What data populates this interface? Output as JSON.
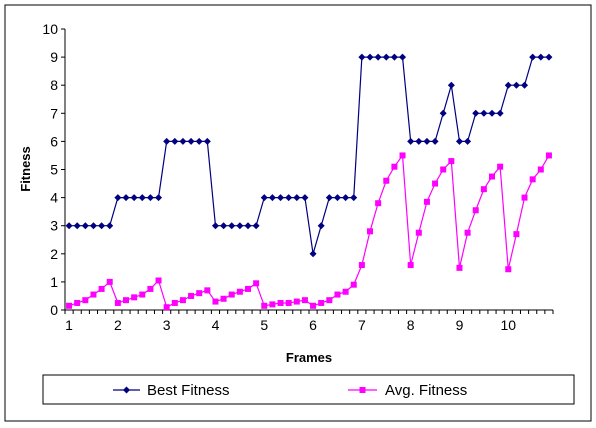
{
  "chart_data": {
    "type": "line",
    "ylabel": "Fitness",
    "xlabel": "Frames",
    "ylim": [
      0,
      10
    ],
    "yticks": [
      0,
      1,
      2,
      3,
      4,
      5,
      6,
      7,
      8,
      9,
      10
    ],
    "xtick_labels": [
      "1",
      "2",
      "3",
      "4",
      "5",
      "6",
      "7",
      "8",
      "9",
      "10"
    ],
    "grid": false,
    "legend_position": "bottom",
    "series": [
      {
        "name": "Best Fitness",
        "color": "#000080",
        "marker": "diamond",
        "values": [
          3,
          3,
          3,
          3,
          3,
          3,
          4,
          4,
          4,
          4,
          4,
          4,
          6,
          6,
          6,
          6,
          6,
          6,
          3,
          3,
          3,
          3,
          3,
          3,
          4,
          4,
          4,
          4,
          4,
          4,
          2,
          3,
          4,
          4,
          4,
          4,
          9,
          9,
          9,
          9,
          9,
          9,
          6,
          6,
          6,
          6,
          7,
          8,
          6,
          6,
          7,
          7,
          7,
          7,
          8,
          8,
          8,
          9,
          9,
          9
        ]
      },
      {
        "name": "Avg. Fitness",
        "color": "#FF00FF",
        "marker": "square",
        "values": [
          0.15,
          0.25,
          0.35,
          0.55,
          0.75,
          1.0,
          0.25,
          0.35,
          0.45,
          0.55,
          0.75,
          1.05,
          0.1,
          0.25,
          0.35,
          0.5,
          0.6,
          0.7,
          0.3,
          0.4,
          0.55,
          0.65,
          0.75,
          0.95,
          0.15,
          0.2,
          0.25,
          0.25,
          0.3,
          0.35,
          0.15,
          0.25,
          0.35,
          0.55,
          0.65,
          0.9,
          1.6,
          2.8,
          3.8,
          4.6,
          5.1,
          5.5,
          1.6,
          2.75,
          3.85,
          4.5,
          5.0,
          5.3,
          1.5,
          2.75,
          3.55,
          4.3,
          4.75,
          5.1,
          1.45,
          2.7,
          4.0,
          4.65,
          5.0,
          5.5
        ]
      }
    ]
  }
}
